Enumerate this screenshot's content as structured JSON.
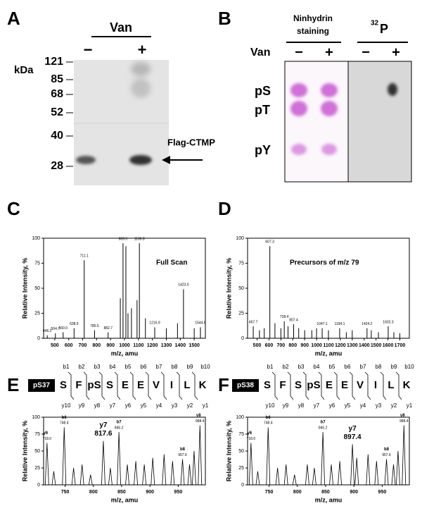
{
  "panel_a": {
    "letter": "A",
    "treatment": "Van",
    "lanes": [
      "−",
      "+"
    ],
    "unit": "kDa",
    "markers": [
      121,
      85,
      68,
      52,
      40,
      28
    ],
    "band_label": "Flag-CTMP"
  },
  "panel_b": {
    "letter": "B",
    "stain_line1": "Ninhydrin",
    "stain_line2": "staining",
    "isotope_mass": "32",
    "isotope_element": "P",
    "treatment": "Van",
    "lanes": [
      "−",
      "+",
      "−",
      "+"
    ],
    "spots": [
      "pS",
      "pT",
      "pY"
    ]
  },
  "chart_data": [
    {
      "type": "spectrum",
      "panel": "C",
      "annotation": "Full Scan",
      "xlabel": "m/z, amu",
      "ylabel": "Relative Intensity, %",
      "color": "#000000",
      "x": [
        446.2,
        504.7,
        560.0,
        638.5,
        711.1,
        785.5,
        882.7,
        970,
        989.5,
        1010,
        1025,
        1050,
        1090,
        1106.8,
        1150,
        1216.9,
        1300,
        1380,
        1423.0,
        1500,
        1544.6
      ],
      "values": [
        3,
        5,
        6,
        10,
        78,
        8,
        6,
        40,
        95,
        92,
        25,
        30,
        38,
        95,
        20,
        11,
        10,
        15,
        49,
        10,
        11
      ],
      "peak_labels": [
        "446.2",
        "504.7",
        "560.0",
        "638.5",
        "711.1",
        "785.5",
        "882.7",
        null,
        "989.5",
        null,
        null,
        null,
        null,
        "1106.8",
        null,
        "1216.9",
        null,
        null,
        "1423.0",
        null,
        "1544.6"
      ],
      "xlim": [
        420,
        1580
      ],
      "xticks": [
        500,
        600,
        700,
        800,
        900,
        1000,
        1100,
        1200,
        1300,
        1400,
        1500
      ],
      "ylim": [
        0,
        100
      ],
      "yticks": [
        0,
        25,
        50,
        75,
        100
      ]
    },
    {
      "type": "spectrum",
      "panel": "D",
      "annotation": "Precursors of m/z 79",
      "xlabel": "m/z, amu",
      "ylabel": "Relative Intensity, %",
      "color": "#000000",
      "x": [
        467.7,
        520,
        560,
        607.3,
        650,
        700,
        728.4,
        760,
        807.4,
        850,
        900,
        960,
        1000,
        1047.1,
        1100,
        1194.1,
        1250,
        1300,
        1424.2,
        1460,
        1520,
        1602.3,
        1650,
        1700
      ],
      "values": [
        12,
        8,
        10,
        92,
        15,
        10,
        17,
        12,
        14,
        10,
        8,
        8,
        10,
        10,
        8,
        10,
        6,
        8,
        10,
        8,
        6,
        12,
        6,
        5
      ],
      "peak_labels": [
        "467.7",
        null,
        null,
        "607.3",
        null,
        null,
        "728.4",
        null,
        "807.4",
        null,
        null,
        null,
        null,
        "1047.1",
        null,
        "1194.1",
        null,
        null,
        "1424.2",
        null,
        null,
        "1602.3",
        null,
        null
      ],
      "xlim": [
        420,
        1780
      ],
      "xticks": [
        500,
        600,
        700,
        800,
        900,
        1000,
        1100,
        1200,
        1300,
        1400,
        1500,
        1600,
        1700
      ],
      "ylim": [
        0,
        100
      ],
      "yticks": [
        0,
        25,
        50,
        75,
        100
      ]
    },
    {
      "type": "spectrum",
      "panel": "E",
      "xlabel": "m/z, amu",
      "ylabel": "Relative Intensity, %",
      "color": "#000000",
      "sequence": {
        "site": "pS37",
        "residues": [
          "S",
          "F",
          "pS",
          "S",
          "E",
          "E",
          "V",
          "I",
          "L",
          "K"
        ],
        "b_ions": [
          "b1",
          "b2",
          "b3",
          "b4",
          "b5",
          "b6",
          "b7",
          "b8",
          "b9",
          "b10"
        ],
        "y_ions": [
          "y10",
          "y9",
          "y8",
          "y7",
          "y6",
          "y5",
          "y4",
          "y3",
          "y2",
          "y1"
        ]
      },
      "x": [
        718.0,
        730,
        748.4,
        765,
        780,
        795,
        817.6,
        830,
        845.2,
        860,
        875,
        890,
        905,
        925,
        940,
        957.6,
        970,
        978,
        988.4
      ],
      "values": [
        62,
        20,
        85,
        25,
        30,
        15,
        65,
        25,
        78,
        30,
        35,
        30,
        40,
        45,
        35,
        38,
        30,
        50,
        88
      ],
      "ions": [
        "y6",
        null,
        "b6",
        null,
        null,
        null,
        "y7",
        null,
        "b7",
        null,
        null,
        null,
        null,
        null,
        null,
        "b8",
        null,
        null,
        "y8"
      ],
      "peak_labels": [
        "718.0",
        null,
        "748.4",
        null,
        null,
        null,
        "817.6",
        null,
        "845.2",
        null,
        null,
        null,
        null,
        null,
        null,
        "957.6",
        null,
        null,
        "988.4"
      ],
      "xlim": [
        712,
        998
      ],
      "xticks": [
        750,
        800,
        850,
        900,
        950
      ],
      "ylim": [
        0,
        100
      ],
      "yticks": [
        0,
        25,
        50,
        75,
        100
      ]
    },
    {
      "type": "spectrum",
      "panel": "F",
      "xlabel": "m/z, amu",
      "ylabel": "Relative Intensity, %",
      "color": "#000000",
      "sequence": {
        "site": "pS38",
        "residues": [
          "S",
          "F",
          "S",
          "pS",
          "E",
          "E",
          "V",
          "I",
          "L",
          "K"
        ],
        "b_ions": [
          "b1",
          "b2",
          "b3",
          "b4",
          "b5",
          "b6",
          "b7",
          "b8",
          "b9",
          "b10"
        ],
        "y_ions": [
          "y10",
          "y9",
          "y8",
          "y7",
          "y6",
          "y5",
          "y4",
          "y3",
          "y2",
          "y1"
        ]
      },
      "x": [
        718.0,
        730,
        748.4,
        765,
        780,
        795,
        817.6,
        830,
        845.2,
        860,
        875,
        897.4,
        905,
        925,
        940,
        957.6,
        970,
        978,
        988.4
      ],
      "values": [
        62,
        20,
        85,
        25,
        30,
        15,
        30,
        25,
        78,
        30,
        35,
        60,
        40,
        45,
        35,
        38,
        30,
        50,
        88
      ],
      "ions": [
        "y6",
        null,
        "b6",
        null,
        null,
        null,
        null,
        null,
        "b7",
        null,
        null,
        "y7",
        null,
        null,
        null,
        "b8",
        null,
        null,
        "y8"
      ],
      "peak_labels": [
        "718.0",
        null,
        "748.4",
        null,
        null,
        null,
        null,
        null,
        "845.2",
        null,
        null,
        "897.4",
        null,
        null,
        null,
        "957.6",
        null,
        null,
        "988.4"
      ],
      "xlim": [
        712,
        998
      ],
      "xticks": [
        750,
        800,
        850,
        900,
        950
      ],
      "ylim": [
        0,
        100
      ],
      "yticks": [
        0,
        25,
        50,
        75,
        100
      ]
    }
  ]
}
